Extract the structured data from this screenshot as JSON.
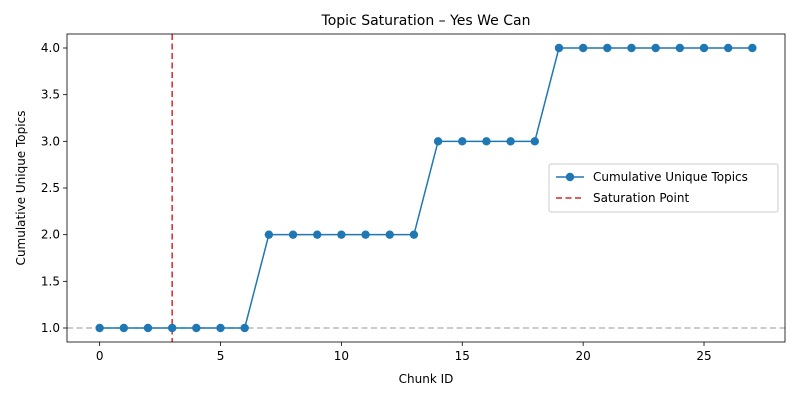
{
  "chart_data": {
    "type": "line",
    "title": "Topic Saturation – Yes We Can",
    "xlabel": "Chunk ID",
    "ylabel": "Cumulative Unique Topics",
    "xlim": [
      -1.35,
      28.35
    ],
    "ylim": [
      0.85,
      4.15
    ],
    "xticks": [
      0,
      5,
      10,
      15,
      20,
      25
    ],
    "yticks": [
      1.0,
      1.5,
      2.0,
      2.5,
      3.0,
      3.5,
      4.0
    ],
    "ytick_labels": [
      "1.0",
      "1.5",
      "2.0",
      "2.5",
      "3.0",
      "3.5",
      "4.0"
    ],
    "series": [
      {
        "name": "Cumulative Unique Topics",
        "color": "#1f77b4",
        "marker": "circle",
        "x": [
          0,
          1,
          2,
          3,
          4,
          5,
          6,
          7,
          8,
          9,
          10,
          11,
          12,
          13,
          14,
          15,
          16,
          17,
          18,
          19,
          20,
          21,
          22,
          23,
          24,
          25,
          26,
          27
        ],
        "y": [
          1,
          1,
          1,
          1,
          1,
          1,
          1,
          2,
          2,
          2,
          2,
          2,
          2,
          2,
          3,
          3,
          3,
          3,
          3,
          4,
          4,
          4,
          4,
          4,
          4,
          4,
          4,
          4
        ]
      }
    ],
    "saturation_line": {
      "name": "Saturation Point",
      "x": 3,
      "color": "#d62728",
      "style": "dashed"
    },
    "reference_line": {
      "y": 1.0,
      "color": "#bbbbbb",
      "style": "dashed"
    },
    "legend": {
      "placement": "center-right"
    },
    "grid": false
  }
}
